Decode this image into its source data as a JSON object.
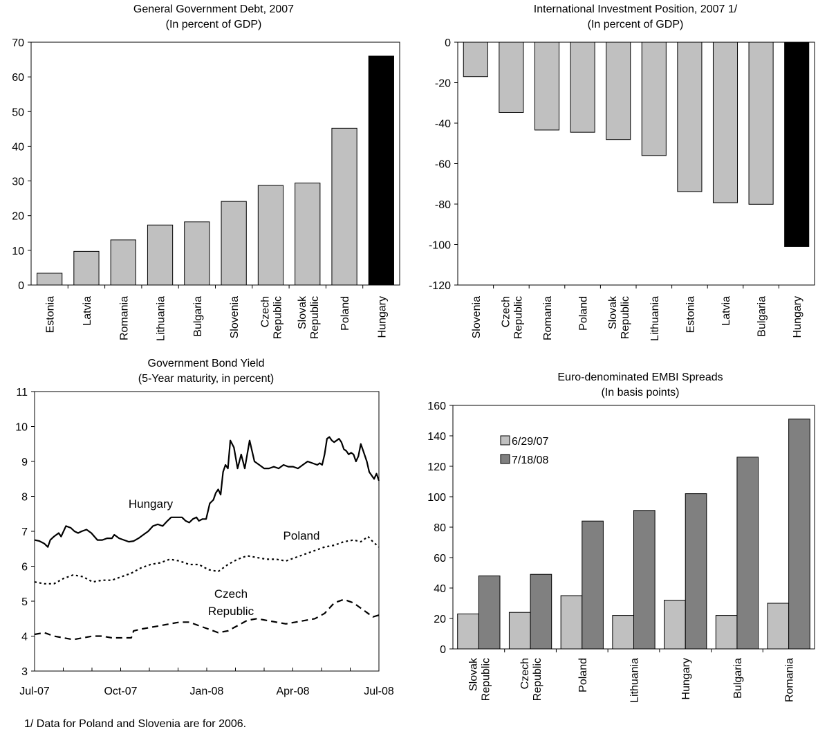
{
  "footnote": "1/ Data for Poland and Slovenia are for 2006.",
  "colors": {
    "bar_light": "#c0c0c0",
    "bar_dark": "#808080",
    "bar_highlight": "#000000",
    "axis": "#000000"
  },
  "chart_data": [
    {
      "id": "debt",
      "type": "bar",
      "title": "General Government Debt, 2007",
      "subtitle": "(In percent of GDP)",
      "categories": [
        "Estonia",
        "Latvia",
        "Romania",
        "Lithuania",
        "Bulgaria",
        "Slovenia",
        "Czech Republic",
        "Slovak Republic",
        "Poland",
        "Hungary"
      ],
      "values": [
        3.4,
        9.7,
        13.0,
        17.3,
        18.2,
        24.1,
        28.7,
        29.4,
        45.2,
        66.0
      ],
      "highlight": "Hungary",
      "ylim": [
        0,
        70
      ],
      "yticks": [
        0,
        10,
        20,
        30,
        40,
        50,
        60,
        70
      ],
      "grid": false
    },
    {
      "id": "iip",
      "type": "bar",
      "title": "International Investment Position, 2007 1/",
      "subtitle": "(In percent of GDP)",
      "categories": [
        "Slovenia",
        "Czech Republic",
        "Romania",
        "Poland",
        "Slovak Republic",
        "Lithuania",
        "Estonia",
        "Latvia",
        "Bulgaria",
        "Hungary"
      ],
      "values": [
        -17.0,
        -34.7,
        -43.4,
        -44.5,
        -48.1,
        -56.0,
        -73.8,
        -79.3,
        -80.1,
        -101.0
      ],
      "highlight": "Hungary",
      "ylim": [
        -120,
        0
      ],
      "yticks": [
        0,
        -20,
        -40,
        -60,
        -80,
        -100,
        -120
      ],
      "grid": false
    },
    {
      "id": "yield",
      "type": "line",
      "title": "Government Bond Yield",
      "subtitle": "(5-Year maturity, in percent)",
      "xticks": [
        "Jul-07",
        "Oct-07",
        "Jan-08",
        "Apr-08",
        "Jul-08"
      ],
      "ylim": [
        3,
        11
      ],
      "yticks": [
        3,
        4,
        5,
        6,
        7,
        8,
        9,
        10,
        11
      ],
      "grid": false,
      "series": [
        {
          "name": "Hungary",
          "style": "solid",
          "x": [
            0,
            4,
            8,
            11,
            13,
            16,
            20,
            22,
            26,
            30,
            33,
            36,
            39,
            43,
            47,
            52,
            56,
            60,
            64,
            66,
            70,
            74,
            78,
            82,
            86,
            90,
            94,
            98,
            102,
            106,
            110,
            113,
            116,
            119,
            122,
            125,
            128,
            131,
            134,
            136,
            139,
            142,
            145,
            148,
            150,
            152,
            154,
            156,
            158,
            160,
            162,
            165,
            168,
            171,
            174,
            178,
            182,
            186,
            190,
            194,
            198,
            202,
            206,
            210,
            214,
            218,
            222,
            226,
            230,
            234,
            236,
            238,
            240,
            242,
            244,
            246,
            248,
            250,
            252,
            254,
            256,
            258,
            260,
            262,
            264,
            266,
            268,
            270,
            272,
            274,
            275,
            277,
            279,
            281,
            283,
            285
          ],
          "values": [
            6.75,
            6.72,
            6.65,
            6.55,
            6.75,
            6.85,
            6.95,
            6.85,
            7.15,
            7.1,
            7.0,
            6.95,
            7.0,
            7.05,
            6.95,
            6.75,
            6.75,
            6.8,
            6.8,
            6.9,
            6.8,
            6.75,
            6.7,
            6.72,
            6.8,
            6.9,
            7.0,
            7.15,
            7.2,
            7.15,
            7.3,
            7.4,
            7.4,
            7.4,
            7.4,
            7.3,
            7.25,
            7.35,
            7.4,
            7.3,
            7.35,
            7.35,
            7.8,
            7.9,
            8.1,
            8.2,
            8.05,
            8.7,
            8.9,
            8.8,
            9.6,
            9.4,
            8.8,
            9.2,
            8.8,
            9.6,
            9.0,
            8.9,
            8.8,
            8.8,
            8.85,
            8.8,
            8.9,
            8.85,
            8.85,
            8.8,
            8.9,
            9.0,
            8.95,
            8.9,
            8.95,
            8.9,
            9.2,
            9.65,
            9.7,
            9.6,
            9.55,
            9.6,
            9.65,
            9.55,
            9.35,
            9.3,
            9.2,
            9.25,
            9.2,
            9.0,
            9.15,
            9.5,
            9.3,
            9.1,
            9.0,
            8.7,
            8.6,
            8.5,
            8.65,
            8.45
          ]
        },
        {
          "name": "Poland",
          "style": "dotted",
          "x": [
            0,
            8,
            16,
            24,
            32,
            40,
            48,
            56,
            64,
            72,
            80,
            88,
            96,
            104,
            112,
            120,
            128,
            136,
            144,
            152,
            160,
            168,
            176,
            184,
            192,
            200,
            208,
            216,
            224,
            232,
            240,
            248,
            256,
            264,
            270,
            276,
            280,
            285
          ],
          "values": [
            5.55,
            5.5,
            5.5,
            5.65,
            5.75,
            5.7,
            5.55,
            5.6,
            5.6,
            5.7,
            5.8,
            5.95,
            6.05,
            6.1,
            6.2,
            6.15,
            6.05,
            6.05,
            5.9,
            5.85,
            6.05,
            6.2,
            6.3,
            6.25,
            6.2,
            6.2,
            6.15,
            6.25,
            6.35,
            6.45,
            6.55,
            6.6,
            6.7,
            6.75,
            6.7,
            6.85,
            6.7,
            6.55
          ]
        },
        {
          "name": "Czech Republic",
          "style": "dashed",
          "x": [
            0,
            8,
            16,
            24,
            32,
            40,
            48,
            56,
            64,
            72,
            80,
            82,
            88,
            96,
            104,
            112,
            120,
            128,
            136,
            144,
            152,
            160,
            168,
            176,
            184,
            192,
            200,
            208,
            216,
            224,
            232,
            240,
            248,
            256,
            264,
            270,
            276,
            280,
            285
          ],
          "values": [
            4.05,
            4.1,
            4.0,
            3.95,
            3.9,
            3.95,
            4.0,
            4.0,
            3.95,
            3.95,
            3.95,
            4.15,
            4.2,
            4.25,
            4.3,
            4.35,
            4.4,
            4.4,
            4.3,
            4.2,
            4.1,
            4.15,
            4.3,
            4.45,
            4.5,
            4.45,
            4.4,
            4.35,
            4.4,
            4.45,
            4.5,
            4.65,
            4.95,
            5.05,
            4.95,
            4.8,
            4.65,
            4.55,
            4.6
          ]
        }
      ]
    },
    {
      "id": "embi",
      "type": "bar",
      "title": "Euro-denominated EMBI Spreads",
      "subtitle": "(In basis points)",
      "categories": [
        "Slovak Republic",
        "Czech Republic",
        "Poland",
        "Lithuania",
        "Hungary",
        "Bulgaria",
        "Romania"
      ],
      "series": [
        {
          "name": "6/29/07",
          "values": [
            23,
            24,
            35,
            22,
            32,
            22,
            30
          ]
        },
        {
          "name": "7/18/08",
          "values": [
            48,
            49,
            84,
            91,
            102,
            126,
            151
          ]
        }
      ],
      "ylim": [
        0,
        160
      ],
      "yticks": [
        0,
        20,
        40,
        60,
        80,
        100,
        120,
        140,
        160
      ],
      "legend": "top-left",
      "grid": false
    }
  ]
}
